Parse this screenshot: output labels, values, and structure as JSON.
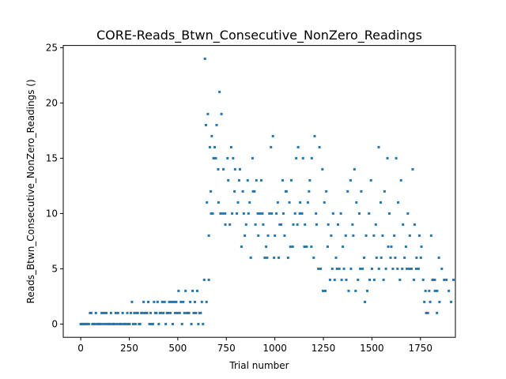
{
  "chart_data": {
    "type": "scatter",
    "title": "CORE-Reads_Btwn_Consecutive_NonZero_Readings",
    "xlabel": "Trial number",
    "ylabel": "Reads_Btwn_Consecutive_NonZero_Readings ()",
    "xlim": [
      -90,
      1930
    ],
    "ylim": [
      -1.2,
      25.2
    ],
    "x_ticks": [
      0,
      250,
      500,
      750,
      1000,
      1250,
      1500,
      1750
    ],
    "y_ticks": [
      0,
      5,
      10,
      15,
      20,
      25
    ],
    "grid": false,
    "marker_color": "#1f77b4",
    "series": [
      {
        "points": [
          [
            24,
            0
          ],
          [
            36,
            0
          ],
          [
            48,
            1
          ],
          [
            60,
            0
          ],
          [
            72,
            0
          ],
          [
            96,
            0
          ],
          [
            108,
            1
          ],
          [
            120,
            1
          ],
          [
            144,
            0
          ],
          [
            156,
            1
          ],
          [
            168,
            0
          ],
          [
            180,
            1
          ],
          [
            204,
            0
          ],
          [
            216,
            1
          ],
          [
            228,
            0
          ],
          [
            240,
            1
          ],
          [
            252,
            0
          ],
          [
            264,
            2
          ],
          [
            276,
            1
          ],
          [
            288,
            1
          ],
          [
            300,
            0
          ],
          [
            312,
            1
          ],
          [
            324,
            2
          ],
          [
            336,
            1
          ],
          [
            348,
            2
          ],
          [
            360,
            1
          ],
          [
            372,
            0
          ],
          [
            384,
            1
          ],
          [
            396,
            2
          ],
          [
            408,
            1
          ],
          [
            420,
            2
          ],
          [
            432,
            2
          ],
          [
            444,
            1
          ],
          [
            456,
            2
          ],
          [
            468,
            2
          ],
          [
            480,
            2
          ],
          [
            492,
            2
          ],
          [
            504,
            3
          ],
          [
            516,
            2
          ],
          [
            528,
            2
          ],
          [
            540,
            3
          ],
          [
            552,
            1
          ],
          [
            564,
            2
          ],
          [
            576,
            3
          ],
          [
            588,
            2
          ],
          [
            600,
            3
          ],
          [
            612,
            1
          ],
          [
            624,
            2
          ],
          [
            636,
            4
          ],
          [
            648,
            2
          ],
          [
            660,
            4
          ],
          [
            672,
            10
          ],
          [
            684,
            15
          ],
          [
            696,
            15
          ],
          [
            708,
            14
          ],
          [
            720,
            10
          ],
          [
            732,
            10
          ],
          [
            744,
            10
          ],
          [
            756,
            15
          ],
          [
            768,
            9
          ],
          [
            780,
            10
          ],
          [
            792,
            12
          ],
          [
            804,
            10
          ],
          [
            816,
            13
          ],
          [
            828,
            7
          ],
          [
            840,
            10
          ],
          [
            852,
            9
          ],
          [
            864,
            10
          ],
          [
            876,
            6
          ],
          [
            888,
            12
          ],
          [
            900,
            9
          ],
          [
            912,
            10
          ],
          [
            924,
            10
          ],
          [
            936,
            10
          ],
          [
            948,
            6
          ],
          [
            960,
            6
          ],
          [
            972,
            10
          ],
          [
            984,
            10
          ],
          [
            996,
            6
          ],
          [
            1008,
            10
          ],
          [
            1020,
            6
          ],
          [
            1032,
            9
          ],
          [
            1044,
            10
          ],
          [
            1056,
            12
          ],
          [
            1068,
            6
          ],
          [
            1080,
            7
          ],
          [
            1092,
            7
          ],
          [
            1104,
            10
          ],
          [
            1116,
            9
          ],
          [
            1128,
            10
          ],
          [
            1140,
            10
          ],
          [
            1152,
            7
          ],
          [
            1164,
            7
          ],
          [
            1176,
            12
          ],
          [
            1188,
            7
          ],
          [
            1200,
            6
          ],
          [
            1212,
            10
          ],
          [
            1224,
            5
          ],
          [
            1236,
            5
          ],
          [
            1248,
            3
          ],
          [
            1260,
            3
          ],
          [
            1272,
            7
          ],
          [
            1284,
            4
          ],
          [
            1296,
            5
          ],
          [
            1308,
            4
          ],
          [
            1320,
            5
          ],
          [
            1332,
            5
          ],
          [
            1344,
            4
          ],
          [
            1356,
            5
          ],
          [
            1368,
            4
          ],
          [
            1380,
            3
          ],
          [
            1392,
            5
          ],
          [
            1404,
            8
          ],
          [
            1416,
            3
          ],
          [
            1428,
            4
          ],
          [
            1440,
            5
          ],
          [
            1452,
            5
          ],
          [
            1464,
            2
          ],
          [
            1476,
            3
          ],
          [
            1488,
            4
          ],
          [
            1500,
            5
          ],
          [
            1512,
            4
          ],
          [
            1524,
            6
          ],
          [
            1536,
            5
          ],
          [
            1548,
            6
          ],
          [
            1560,
            4
          ],
          [
            1572,
            5
          ],
          [
            1584,
            7
          ],
          [
            1596,
            6
          ],
          [
            1608,
            5
          ],
          [
            1620,
            6
          ],
          [
            1632,
            5
          ],
          [
            1644,
            4
          ],
          [
            1656,
            5
          ],
          [
            1668,
            6
          ],
          [
            1680,
            5
          ],
          [
            1692,
            5
          ],
          [
            1704,
            5
          ],
          [
            1716,
            4
          ],
          [
            1728,
            5
          ],
          [
            1740,
            5
          ],
          [
            1752,
            6
          ],
          [
            1764,
            4
          ],
          [
            1776,
            3
          ],
          [
            1788,
            1
          ],
          [
            1800,
            2
          ],
          [
            1812,
            4
          ],
          [
            1824,
            4
          ],
          [
            1836,
            3
          ],
          [
            1848,
            2
          ],
          [
            1860,
            5
          ],
          [
            1872,
            4
          ],
          [
            1884,
            4
          ],
          [
            1896,
            3
          ],
          [
            1908,
            2
          ],
          [
            1920,
            4
          ],
          [
            0,
            0
          ],
          [
            6,
            0
          ],
          [
            12,
            0
          ],
          [
            18,
            0
          ],
          [
            30,
            0
          ],
          [
            42,
            0
          ],
          [
            54,
            1
          ],
          [
            66,
            0
          ],
          [
            78,
            1
          ],
          [
            84,
            0
          ],
          [
            90,
            0
          ],
          [
            102,
            0
          ],
          [
            114,
            0
          ],
          [
            126,
            0
          ],
          [
            132,
            1
          ],
          [
            138,
            0
          ],
          [
            150,
            0
          ],
          [
            162,
            0
          ],
          [
            174,
            0
          ],
          [
            186,
            0
          ],
          [
            192,
            1
          ],
          [
            198,
            0
          ],
          [
            210,
            0
          ],
          [
            222,
            0
          ],
          [
            234,
            0
          ],
          [
            246,
            0
          ],
          [
            258,
            1
          ],
          [
            270,
            0
          ],
          [
            282,
            0
          ],
          [
            294,
            1
          ],
          [
            306,
            0
          ],
          [
            318,
            1
          ],
          [
            330,
            1
          ],
          [
            342,
            1
          ],
          [
            354,
            0
          ],
          [
            366,
            0
          ],
          [
            378,
            2
          ],
          [
            390,
            1
          ],
          [
            402,
            0
          ],
          [
            414,
            1
          ],
          [
            426,
            1
          ],
          [
            438,
            0
          ],
          [
            450,
            1
          ],
          [
            462,
            1
          ],
          [
            474,
            0
          ],
          [
            486,
            1
          ],
          [
            498,
            1
          ],
          [
            510,
            1
          ],
          [
            522,
            0
          ],
          [
            534,
            1
          ],
          [
            546,
            1
          ],
          [
            558,
            1
          ],
          [
            570,
            0
          ],
          [
            582,
            1
          ],
          [
            594,
            1
          ],
          [
            606,
            0
          ],
          [
            618,
            1
          ],
          [
            630,
            0
          ],
          [
            640,
            24
          ],
          [
            645,
            18
          ],
          [
            650,
            11
          ],
          [
            655,
            19
          ],
          [
            660,
            8
          ],
          [
            665,
            16
          ],
          [
            670,
            12
          ],
          [
            675,
            17
          ],
          [
            680,
            10
          ],
          [
            690,
            16
          ],
          [
            700,
            18
          ],
          [
            710,
            11
          ],
          [
            715,
            21
          ],
          [
            725,
            19
          ],
          [
            735,
            14
          ],
          [
            745,
            9
          ],
          [
            760,
            13
          ],
          [
            775,
            16
          ],
          [
            785,
            15
          ],
          [
            795,
            14
          ],
          [
            810,
            11
          ],
          [
            820,
            14
          ],
          [
            835,
            12
          ],
          [
            845,
            8
          ],
          [
            860,
            13
          ],
          [
            870,
            11
          ],
          [
            885,
            15
          ],
          [
            895,
            12
          ],
          [
            905,
            13
          ],
          [
            915,
            8
          ],
          [
            930,
            13
          ],
          [
            940,
            9
          ],
          [
            955,
            7
          ],
          [
            965,
            8
          ],
          [
            980,
            16
          ],
          [
            990,
            17
          ],
          [
            1000,
            8
          ],
          [
            1015,
            11
          ],
          [
            1025,
            9
          ],
          [
            1040,
            13
          ],
          [
            1050,
            8
          ],
          [
            1060,
            12
          ],
          [
            1075,
            11
          ],
          [
            1085,
            13
          ],
          [
            1095,
            9
          ],
          [
            1110,
            15
          ],
          [
            1120,
            16
          ],
          [
            1130,
            11
          ],
          [
            1145,
            15
          ],
          [
            1155,
            9
          ],
          [
            1170,
            11
          ],
          [
            1180,
            13
          ],
          [
            1190,
            15
          ],
          [
            1205,
            17
          ],
          [
            1215,
            9
          ],
          [
            1230,
            16
          ],
          [
            1245,
            14
          ],
          [
            1255,
            11
          ],
          [
            1265,
            12
          ],
          [
            1275,
            9
          ],
          [
            1290,
            8
          ],
          [
            1300,
            10
          ],
          [
            1315,
            6
          ],
          [
            1325,
            9
          ],
          [
            1340,
            10
          ],
          [
            1350,
            7
          ],
          [
            1365,
            8
          ],
          [
            1375,
            12
          ],
          [
            1390,
            13
          ],
          [
            1400,
            9
          ],
          [
            1410,
            14
          ],
          [
            1420,
            11
          ],
          [
            1435,
            10
          ],
          [
            1445,
            12
          ],
          [
            1460,
            6
          ],
          [
            1470,
            8
          ],
          [
            1485,
            10
          ],
          [
            1495,
            13
          ],
          [
            1510,
            8
          ],
          [
            1520,
            9
          ],
          [
            1535,
            16
          ],
          [
            1545,
            11
          ],
          [
            1555,
            8
          ],
          [
            1565,
            12
          ],
          [
            1580,
            15
          ],
          [
            1590,
            10
          ],
          [
            1600,
            7
          ],
          [
            1615,
            8
          ],
          [
            1625,
            15
          ],
          [
            1635,
            11
          ],
          [
            1650,
            13
          ],
          [
            1660,
            9
          ],
          [
            1675,
            7
          ],
          [
            1685,
            10
          ],
          [
            1695,
            8
          ],
          [
            1710,
            14
          ],
          [
            1720,
            9
          ],
          [
            1730,
            6
          ],
          [
            1745,
            8
          ],
          [
            1755,
            7
          ],
          [
            1770,
            2
          ],
          [
            1780,
            1
          ],
          [
            1795,
            3
          ],
          [
            1805,
            8
          ],
          [
            1815,
            4
          ],
          [
            1825,
            3
          ],
          [
            1835,
            1
          ],
          [
            1845,
            6
          ]
        ]
      }
    ]
  }
}
